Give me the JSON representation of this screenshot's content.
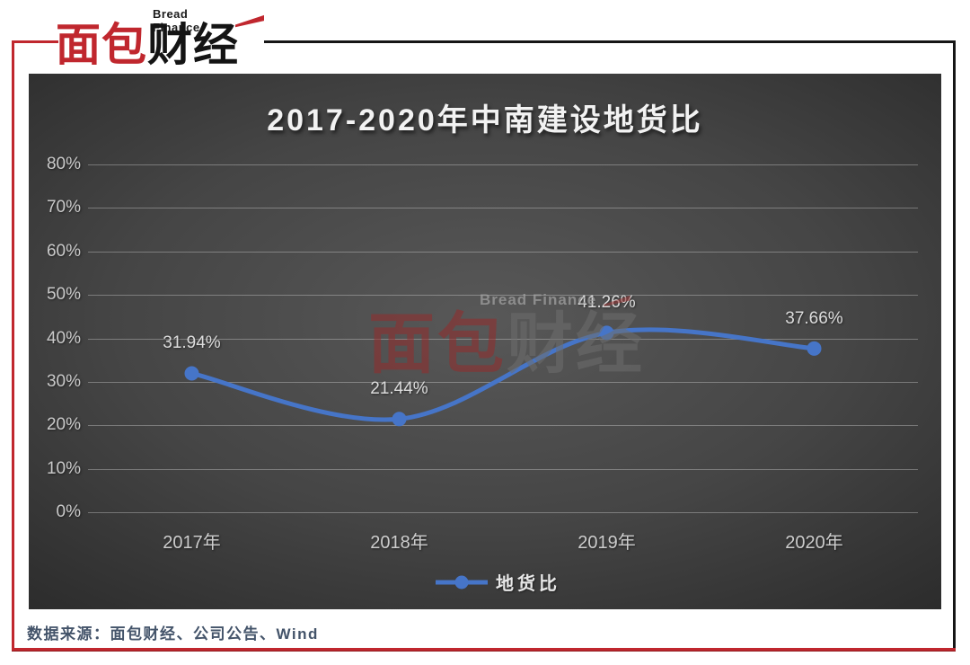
{
  "header": {
    "brand_small": "Bread Finance",
    "brand_red": "面包",
    "brand_black": "财经"
  },
  "chart_data": {
    "type": "line",
    "title": "2017-2020年中南建设地货比",
    "categories": [
      "2017年",
      "2018年",
      "2019年",
      "2020年"
    ],
    "series": [
      {
        "name": "地货比",
        "values": [
          31.94,
          21.44,
          41.26,
          37.66
        ],
        "labels": [
          "31.94%",
          "21.44%",
          "41.26%",
          "37.66%"
        ],
        "color": "#4675C8"
      }
    ],
    "y_ticks": [
      "80%",
      "70%",
      "60%",
      "50%",
      "40%",
      "30%",
      "20%",
      "10%",
      "0%"
    ],
    "ylim": [
      0,
      80
    ],
    "grid": true,
    "legend_position": "bottom-center"
  },
  "watermark": {
    "brand_small": "Bread Finance",
    "brand_red": "面包",
    "brand_gray": "财经"
  },
  "footer": {
    "source": "数据来源：面包财经、公司公告、Wind"
  },
  "colors": {
    "accent_red": "#C0272E",
    "line_blue": "#4675C8",
    "axis_text": "#CDCDCD",
    "source_text": "#44546A"
  }
}
